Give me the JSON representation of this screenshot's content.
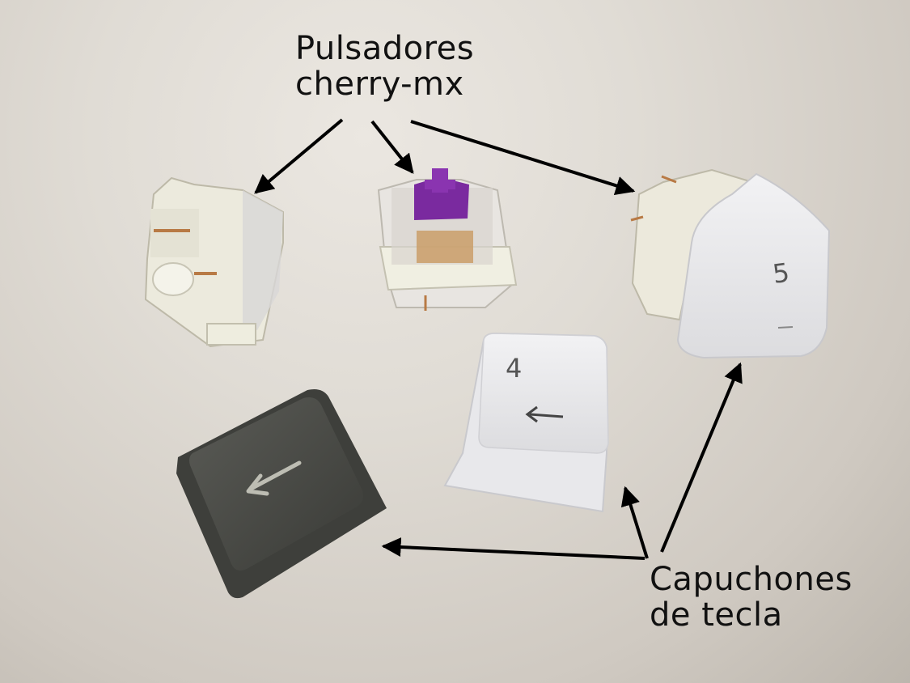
{
  "labels": {
    "switches_line1": "Pulsadores",
    "switches_line2": "cherry-mx",
    "keycaps_line1": "Capuchones",
    "keycaps_line2": "de tecla"
  },
  "keycaps": {
    "white_center_number": "4",
    "white_right_number": "5"
  },
  "colors": {
    "background": "#e3dfd9",
    "switch_housing": "#efeee2",
    "switch_stem": "#7b2aa0",
    "keycap_white": "#ebebee",
    "keycap_dark": "#454641",
    "arrow": "#000000"
  }
}
